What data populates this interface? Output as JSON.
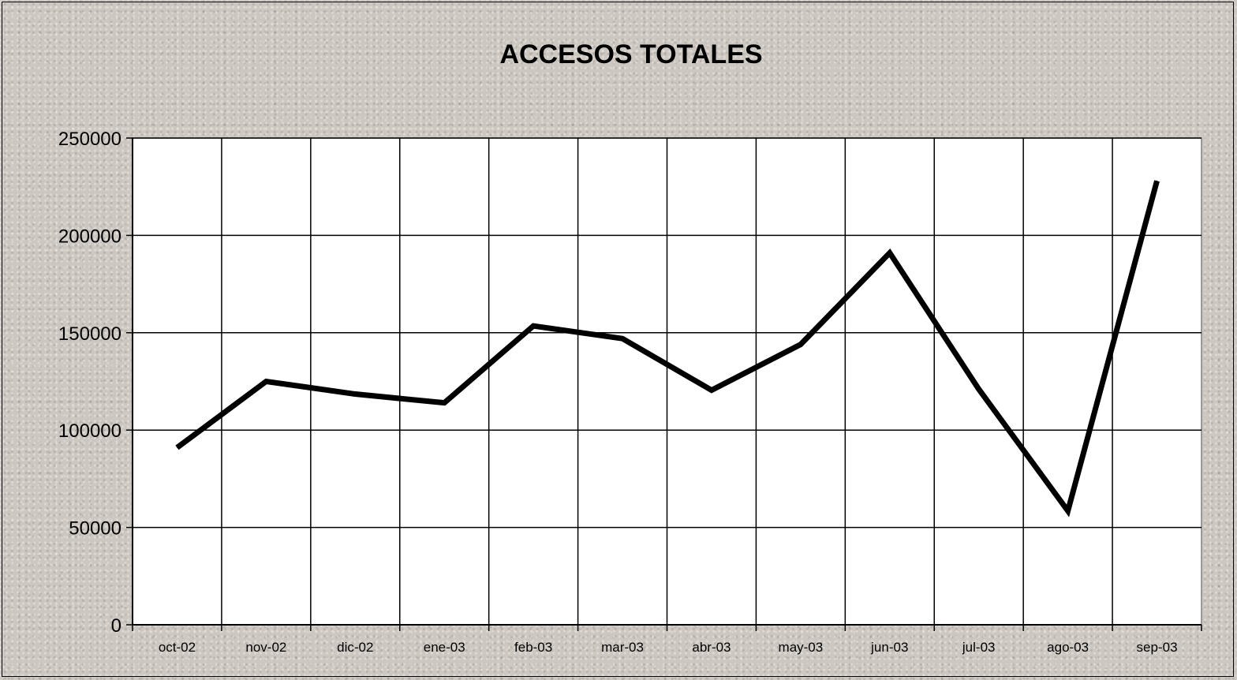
{
  "chart_data": {
    "type": "line",
    "title": "ACCESOS TOTALES",
    "xlabel": "",
    "ylabel": "",
    "categories": [
      "oct-02",
      "nov-02",
      "dic-02",
      "ene-03",
      "feb-03",
      "mar-03",
      "abr-03",
      "may-03",
      "jun-03",
      "jul-03",
      "ago-03",
      "sep-03"
    ],
    "series": [
      {
        "values": [
          91000,
          125000,
          118500,
          114000,
          153500,
          147000,
          120500,
          144000,
          191000,
          121000,
          58500,
          228000
        ]
      }
    ],
    "ylim": [
      0,
      250000
    ],
    "yticks": [
      "0",
      "50000",
      "100000",
      "150000",
      "200000",
      "250000"
    ],
    "grid": true,
    "legend": "none",
    "colors": {
      "line": "#000000",
      "plot_background": "#ffffff"
    }
  }
}
